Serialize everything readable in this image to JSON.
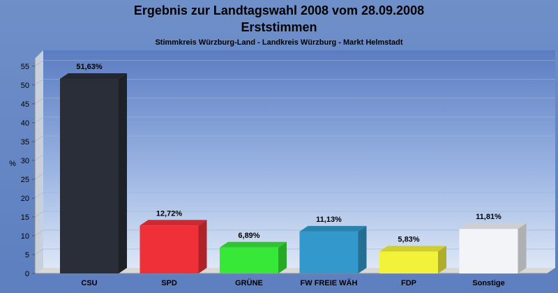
{
  "chart_data": {
    "type": "bar",
    "title": "Ergebnis zur Landtagswahl 2008 vom 28.09.2008",
    "title_line2": "Erststimmen",
    "subtitle": "Stimmkreis Würzburg-Land - Landkreis Würzburg - Markt Helmstadt",
    "ylabel": "%",
    "xlabel": "",
    "ylim": [
      0,
      57
    ],
    "yticks": [
      0,
      5,
      10,
      15,
      20,
      25,
      30,
      35,
      40,
      45,
      50,
      55
    ],
    "grid": true,
    "categories": [
      "CSU",
      "SPD",
      "GRÜNE",
      "FW FREIE WÄH",
      "FDP",
      "Sonstige"
    ],
    "values": [
      51.63,
      12.72,
      6.89,
      11.13,
      5.83,
      11.81
    ],
    "value_labels": [
      "51,63%",
      "12,72%",
      "6,89%",
      "11,13%",
      "5,83%",
      "11,81%"
    ],
    "colors": [
      "#2a2e38",
      "#f03038",
      "#38e838",
      "#3399cc",
      "#f2f23a",
      "#f2f4f8"
    ]
  }
}
